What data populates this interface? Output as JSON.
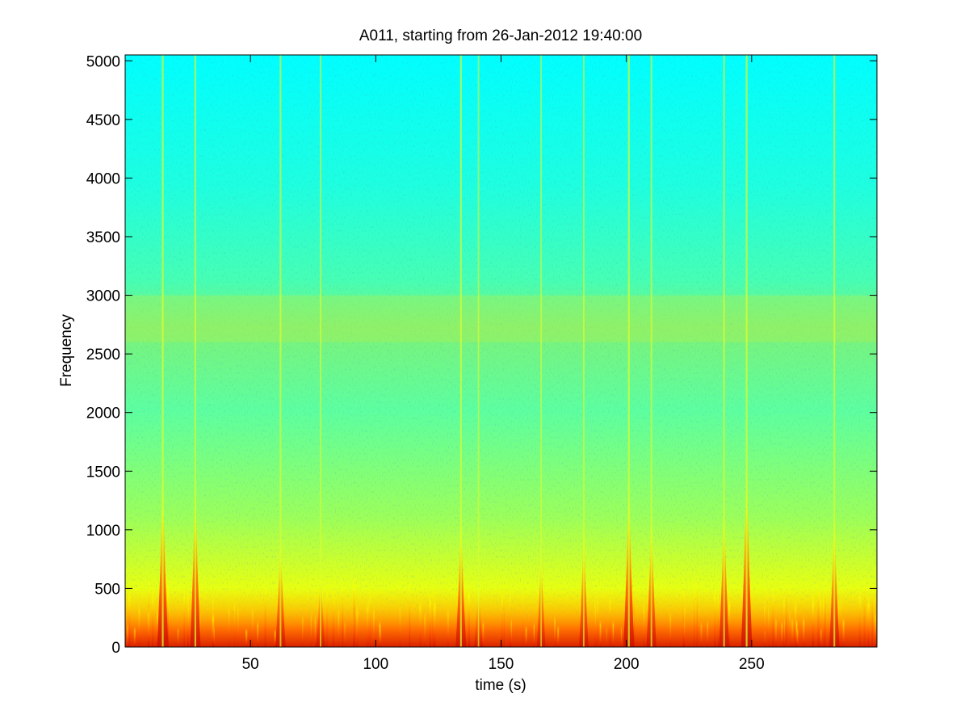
{
  "chart_data": {
    "type": "heatmap",
    "title": "A011, starting from 26-Jan-2012 19:40:00",
    "xlabel": "time (s)",
    "ylabel": "Frequency",
    "xlim": [
      0,
      300
    ],
    "ylim": [
      0,
      5050
    ],
    "x_ticks": [
      50,
      100,
      150,
      200,
      250
    ],
    "y_ticks": [
      0,
      500,
      1000,
      1500,
      2000,
      2500,
      3000,
      3500,
      4000,
      4500,
      5000
    ],
    "colormap": "jet",
    "color_range": [
      "#00ffff",
      "#7fff7f",
      "#ffff00",
      "#ff8000",
      "#e01000"
    ],
    "background_band": {
      "y_range": [
        2600,
        3000
      ],
      "color": "#b5f04a"
    },
    "low_frequency_energy_max_hz": 500,
    "broadband_events": [
      {
        "t": 15,
        "fmax": 1550,
        "strength": 1.0
      },
      {
        "t": 28,
        "fmax": 1500,
        "strength": 0.9
      },
      {
        "t": 62,
        "fmax": 1000,
        "strength": 0.85
      },
      {
        "t": 78,
        "fmax": 700,
        "strength": 0.7
      },
      {
        "t": 134,
        "fmax": 1200,
        "strength": 0.9
      },
      {
        "t": 141,
        "fmax": 600,
        "strength": 0.6
      },
      {
        "t": 166,
        "fmax": 900,
        "strength": 0.6
      },
      {
        "t": 183,
        "fmax": 1100,
        "strength": 0.7
      },
      {
        "t": 201,
        "fmax": 1500,
        "strength": 0.95
      },
      {
        "t": 210,
        "fmax": 1200,
        "strength": 0.8
      },
      {
        "t": 239,
        "fmax": 1300,
        "strength": 0.85
      },
      {
        "t": 248,
        "fmax": 1650,
        "strength": 1.0
      },
      {
        "t": 283,
        "fmax": 1200,
        "strength": 0.85
      }
    ]
  }
}
